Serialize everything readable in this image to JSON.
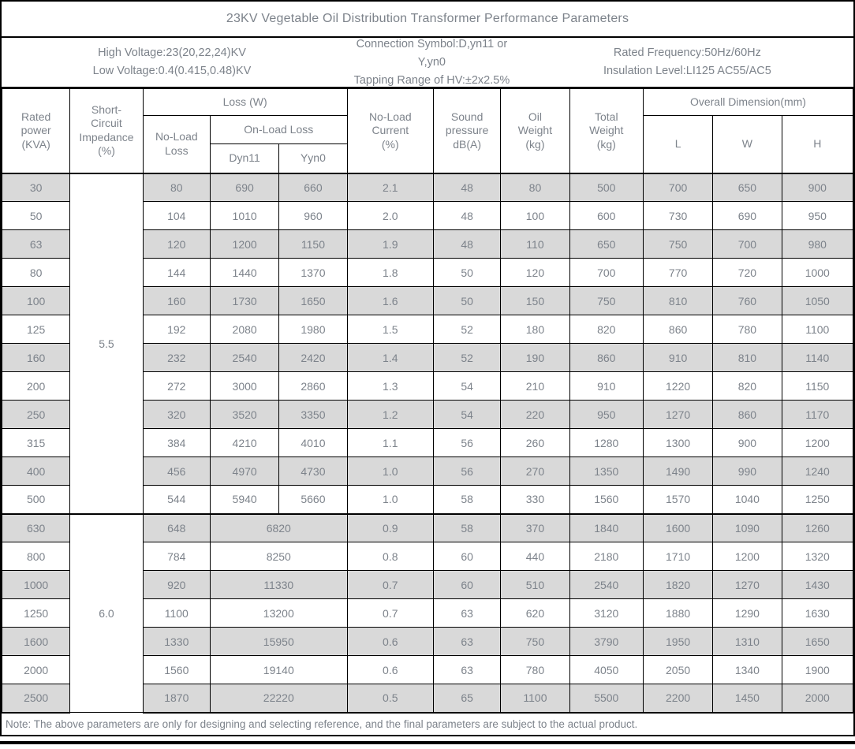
{
  "title": "23KV Vegetable Oil Distribution Transformer Performance Parameters",
  "info": {
    "block1": {
      "line1": "High Voltage:23(20,22,24)KV",
      "line2": "Low Voltage:0.4(0.415,0.48)KV"
    },
    "block2": {
      "line1": "Connection Symbol:D,yn11 or Y,yn0",
      "line2": "Tapping Range of HV:±2x2.5%"
    },
    "block3": {
      "line1": "Rated Frequency:50Hz/60Hz",
      "line2": "Insulation Level:LI125 AC55/AC5"
    }
  },
  "table": {
    "headers": {
      "rated_power": "Rated\npower\n(KVA)",
      "impedance": "Short-\nCircuit\nImpedance\n(%)",
      "loss": "Loss (W)",
      "no_load_loss": "No-Load\nLoss",
      "on_load_loss": "On-Load Loss",
      "dyn11": "Dyn11",
      "yyn0": "Yyn0",
      "no_load_current": "No-Load\nCurrent\n(%)",
      "sound_pressure": "Sound\npressure\ndB(A)",
      "oil_weight": "Oil\nWeight\n(kg)",
      "total_weight": "Total\nWeight\n(kg)",
      "overall_dimension": "Overall Dimension(mm)",
      "dim_l": "L",
      "dim_w": "W",
      "dim_h": "H"
    },
    "groups": [
      {
        "impedance": "5.5",
        "merged_on_load": false,
        "rows": [
          [
            "30",
            "80",
            "690",
            "660",
            "2.1",
            "48",
            "80",
            "500",
            "700",
            "650",
            "900"
          ],
          [
            "50",
            "104",
            "1010",
            "960",
            "2.0",
            "48",
            "100",
            "600",
            "730",
            "690",
            "950"
          ],
          [
            "63",
            "120",
            "1200",
            "1150",
            "1.9",
            "48",
            "110",
            "650",
            "750",
            "700",
            "980"
          ],
          [
            "80",
            "144",
            "1440",
            "1370",
            "1.8",
            "50",
            "120",
            "700",
            "770",
            "720",
            "1000"
          ],
          [
            "100",
            "160",
            "1730",
            "1650",
            "1.6",
            "50",
            "150",
            "750",
            "810",
            "760",
            "1050"
          ],
          [
            "125",
            "192",
            "2080",
            "1980",
            "1.5",
            "52",
            "180",
            "820",
            "860",
            "780",
            "1100"
          ],
          [
            "160",
            "232",
            "2540",
            "2420",
            "1.4",
            "52",
            "190",
            "860",
            "910",
            "810",
            "1140"
          ],
          [
            "200",
            "272",
            "3000",
            "2860",
            "1.3",
            "54",
            "210",
            "910",
            "1220",
            "820",
            "1150"
          ],
          [
            "250",
            "320",
            "3520",
            "3350",
            "1.2",
            "54",
            "220",
            "950",
            "1270",
            "860",
            "1170"
          ],
          [
            "315",
            "384",
            "4210",
            "4010",
            "1.1",
            "56",
            "260",
            "1280",
            "1300",
            "900",
            "1200"
          ],
          [
            "400",
            "456",
            "4970",
            "4730",
            "1.0",
            "56",
            "270",
            "1350",
            "1490",
            "990",
            "1240"
          ],
          [
            "500",
            "544",
            "5940",
            "5660",
            "1.0",
            "58",
            "330",
            "1560",
            "1570",
            "1040",
            "1250"
          ]
        ]
      },
      {
        "impedance": "6.0",
        "merged_on_load": true,
        "rows": [
          [
            "630",
            "648",
            "6820",
            "0.9",
            "58",
            "370",
            "1840",
            "1600",
            "1090",
            "1260"
          ],
          [
            "800",
            "784",
            "8250",
            "0.8",
            "60",
            "440",
            "2180",
            "1710",
            "1200",
            "1320"
          ],
          [
            "1000",
            "920",
            "11330",
            "0.7",
            "60",
            "510",
            "2540",
            "1820",
            "1270",
            "1430"
          ],
          [
            "1250",
            "1100",
            "13200",
            "0.7",
            "63",
            "620",
            "3120",
            "1880",
            "1290",
            "1630"
          ],
          [
            "1600",
            "1330",
            "15950",
            "0.6",
            "63",
            "750",
            "3790",
            "1950",
            "1310",
            "1650"
          ],
          [
            "2000",
            "1560",
            "19140",
            "0.6",
            "63",
            "780",
            "4050",
            "2050",
            "1340",
            "1900"
          ],
          [
            "2500",
            "1870",
            "22220",
            "0.5",
            "65",
            "1100",
            "5500",
            "2200",
            "1450",
            "2000"
          ]
        ]
      }
    ]
  },
  "note": "Note: The above parameters are only for designing and selecting  reference, and the final parameters are subject to the actual product.",
  "colors": {
    "shaded_row": "#d9d9d9",
    "text": "#7d838b",
    "border": "#000000"
  }
}
